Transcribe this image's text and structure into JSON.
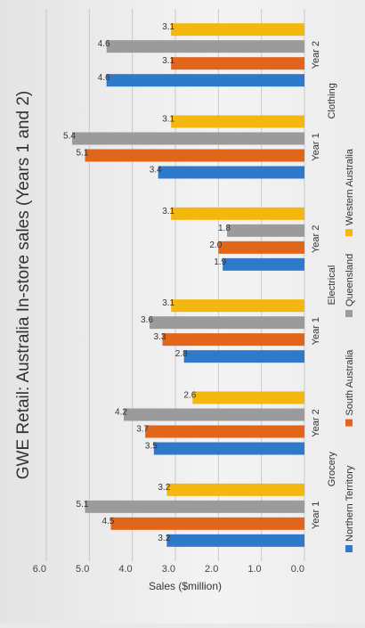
{
  "chart_data": {
    "type": "bar",
    "orientation": "horizontal",
    "title": "GWE Retail: Australia In-store sales (Years 1 and 2)",
    "xlabel": "Sales ($million)",
    "xlim": [
      0,
      6
    ],
    "ticks": [
      "0.0",
      "1.0",
      "2.0",
      "3.0",
      "4.0",
      "5.0",
      "6.0"
    ],
    "grid": true,
    "legend_position": "bottom",
    "groups": [
      {
        "name": "Grocery",
        "years": [
          "Year 1",
          "Year 2"
        ]
      },
      {
        "name": "Electrical",
        "years": [
          "Year 1",
          "Year 2"
        ]
      },
      {
        "name": "Clothing",
        "years": [
          "Year 1",
          "Year 2"
        ]
      }
    ],
    "categories": [
      "Grocery Year 1",
      "Grocery Year 2",
      "Electrical Year 1",
      "Electrical Year 2",
      "Clothing Year 1",
      "Clothing Year 2"
    ],
    "series": [
      {
        "name": "Northern Territory",
        "color": "#2e79c9",
        "values": [
          3.2,
          3.5,
          2.8,
          1.9,
          3.4,
          4.6
        ],
        "labels": [
          "3.2",
          "3.5",
          "2.8",
          "1.9",
          "3.4",
          "4.6"
        ]
      },
      {
        "name": "South Australia",
        "color": "#e2651c",
        "values": [
          4.5,
          3.7,
          3.3,
          2.0,
          5.1,
          3.1
        ],
        "labels": [
          "4.5",
          "3.7",
          "3.3",
          "2.0",
          "5.1",
          "3.1"
        ]
      },
      {
        "name": "Queensland",
        "color": "#9b9b9b",
        "values": [
          5.1,
          4.2,
          3.6,
          1.8,
          5.4,
          4.6
        ],
        "labels": [
          "5.1",
          "4.2",
          "3.6",
          "1.8",
          "5.4",
          "4.6"
        ]
      },
      {
        "name": "Western Australia",
        "color": "#f4b70f",
        "values": [
          3.2,
          2.6,
          3.1,
          3.1,
          3.1,
          3.1
        ],
        "labels": [
          "3.2",
          "2.6",
          "3.1",
          "3.1",
          "3.1",
          "3.1"
        ]
      }
    ]
  }
}
